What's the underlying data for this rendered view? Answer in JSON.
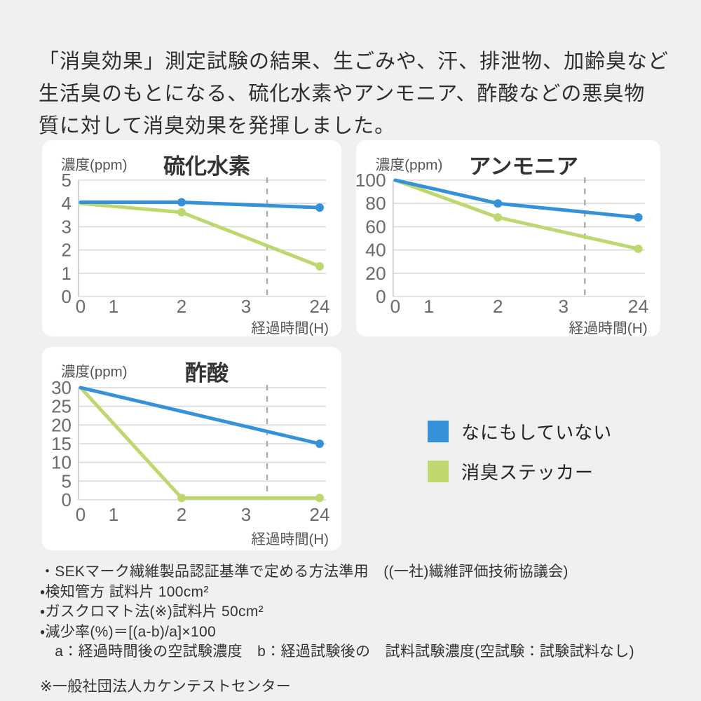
{
  "intro_text": "「消臭効果」測定試験の結果、生ごみや、汗、排泄物、加齢臭など\n生活臭のもとになる、硫化水素やアンモニア、酢酸などの悪臭物\n質に対して消臭効果を発揮しました。",
  "colors": {
    "blue": "#3692d8",
    "green": "#bfd76f",
    "grid": "#dadada",
    "axis": "#c8c8c8",
    "dashed": "#adadad",
    "tick_text": "#6b6b6b",
    "title_text": "#333333",
    "axis_label_text": "#555555"
  },
  "legend": {
    "items": [
      {
        "label": "なにもしていない",
        "color": "#3692d8"
      },
      {
        "label": "消臭ステッカー",
        "color": "#bfd76f"
      }
    ]
  },
  "chart_data": [
    {
      "type": "line",
      "title": "硫化水素",
      "ylabel": "濃度(ppm)",
      "xlabel": "経過時間(H)",
      "x_ticks": [
        "0",
        "1",
        "2",
        "3",
        "24"
      ],
      "y_ticks": [
        5,
        4,
        3,
        2,
        1,
        0
      ],
      "ylim": [
        0,
        5
      ],
      "grid": true,
      "dashed_guide_between": [
        "3",
        "24"
      ],
      "series": [
        {
          "name": "消臭ステッカー",
          "color_key": "green",
          "points": [
            {
              "x": 0,
              "y": 4.0,
              "marker": false
            },
            {
              "x": 2,
              "y": 3.62,
              "marker": true
            },
            {
              "x": 24,
              "y": 1.3,
              "marker": true
            }
          ]
        },
        {
          "name": "なにもしていない",
          "color_key": "blue",
          "points": [
            {
              "x": 0,
              "y": 4.05,
              "marker": false
            },
            {
              "x": 2,
              "y": 4.05,
              "marker": true
            },
            {
              "x": 24,
              "y": 3.82,
              "marker": true
            }
          ]
        }
      ]
    },
    {
      "type": "line",
      "title": "アンモニア",
      "ylabel": "濃度(ppm)",
      "xlabel": "経過時間(H)",
      "x_ticks": [
        "0",
        "1",
        "2",
        "3",
        "24"
      ],
      "y_ticks": [
        100,
        80,
        60,
        40,
        20,
        0
      ],
      "ylim": [
        0,
        100
      ],
      "grid": true,
      "dashed_guide_between": [
        "3",
        "24"
      ],
      "series": [
        {
          "name": "消臭ステッカー",
          "color_key": "green",
          "points": [
            {
              "x": 0,
              "y": 100,
              "marker": false
            },
            {
              "x": 2,
              "y": 68,
              "marker": true
            },
            {
              "x": 24,
              "y": 41,
              "marker": true
            }
          ]
        },
        {
          "name": "なにもしていない",
          "color_key": "blue",
          "points": [
            {
              "x": 0,
              "y": 100,
              "marker": false
            },
            {
              "x": 2,
              "y": 80,
              "marker": true
            },
            {
              "x": 24,
              "y": 68,
              "marker": true
            }
          ]
        }
      ]
    },
    {
      "type": "line",
      "title": "酢酸",
      "ylabel": "濃度(ppm)",
      "xlabel": "経過時間(H)",
      "x_ticks": [
        "0",
        "1",
        "2",
        "3",
        "24"
      ],
      "y_ticks": [
        30,
        25,
        20,
        15,
        10,
        5,
        0
      ],
      "ylim": [
        0,
        30
      ],
      "grid": true,
      "dashed_guide_between": [
        "3",
        "24"
      ],
      "series": [
        {
          "name": "消臭ステッカー",
          "color_key": "green",
          "points": [
            {
              "x": 0,
              "y": 30,
              "marker": false
            },
            {
              "x": 2,
              "y": 0.5,
              "marker": true
            },
            {
              "x": 24,
              "y": 0.5,
              "marker": true
            }
          ]
        },
        {
          "name": "なにもしていない",
          "color_key": "blue",
          "points": [
            {
              "x": 0,
              "y": 30,
              "marker": false
            },
            {
              "x": 24,
              "y": 15,
              "marker": true
            }
          ]
        }
      ]
    }
  ],
  "footnotes": {
    "lines": [
      "・SEKマーク繊維製品認証基準で定める方法準用　((一社)繊維評価技術協議会)",
      "・検知管方 試料片 100cm²",
      "・ガスクロマト法(※)試料片 50cm²",
      "・減少率(%)＝[(a-b)/a]×100",
      "　a：経過時間後の空試験濃度　b：経過試験後の　試料試験濃度(空試験：試験試料なし)"
    ],
    "note": "※一般社団法人カケンテストセンター"
  }
}
